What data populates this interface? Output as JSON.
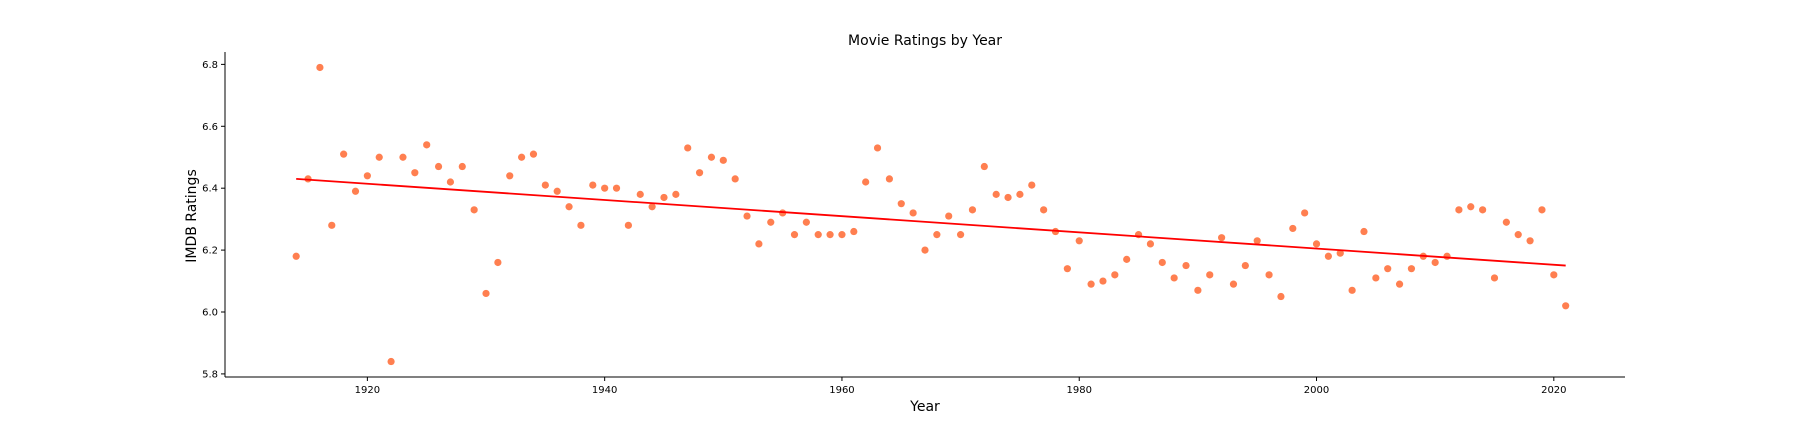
{
  "chart_data": {
    "type": "scatter",
    "title": "Movie Ratings by Year",
    "xlabel": "Year",
    "ylabel": "IMDB Ratings",
    "xlim": [
      1908,
      2026
    ],
    "ylim": [
      5.79,
      6.84
    ],
    "xticks": [
      1920,
      1940,
      1960,
      1980,
      2000,
      2020
    ],
    "yticks": [
      5.8,
      6.0,
      6.2,
      6.4,
      6.6,
      6.8
    ],
    "ytick_labels": [
      "5.8",
      "6.0",
      "6.2",
      "6.4",
      "6.6",
      "6.8"
    ],
    "grid": false,
    "point_color": "#ff7f50",
    "trend_color": "#ff0000",
    "trend_line": {
      "x": [
        1914,
        2021
      ],
      "y": [
        6.43,
        6.15
      ]
    },
    "points": {
      "x": [
        1914,
        1915,
        1916,
        1917,
        1918,
        1919,
        1920,
        1921,
        1922,
        1923,
        1924,
        1925,
        1926,
        1927,
        1928,
        1929,
        1930,
        1931,
        1932,
        1933,
        1934,
        1935,
        1936,
        1937,
        1938,
        1939,
        1940,
        1941,
        1942,
        1943,
        1944,
        1945,
        1946,
        1947,
        1948,
        1949,
        1950,
        1951,
        1952,
        1953,
        1954,
        1955,
        1956,
        1957,
        1958,
        1959,
        1960,
        1961,
        1962,
        1963,
        1964,
        1965,
        1966,
        1967,
        1968,
        1969,
        1970,
        1971,
        1972,
        1973,
        1974,
        1975,
        1976,
        1977,
        1978,
        1979,
        1980,
        1981,
        1982,
        1983,
        1984,
        1985,
        1986,
        1987,
        1988,
        1989,
        1990,
        1991,
        1992,
        1993,
        1994,
        1995,
        1996,
        1997,
        1998,
        1999,
        2000,
        2001,
        2002,
        2003,
        2004,
        2005,
        2006,
        2007,
        2008,
        2009,
        2010,
        2011,
        2012,
        2013,
        2014,
        2015,
        2016,
        2017,
        2018,
        2019,
        2020,
        2021
      ],
      "y": [
        6.18,
        6.43,
        6.79,
        6.28,
        6.51,
        6.39,
        6.44,
        6.5,
        5.84,
        6.5,
        6.45,
        6.54,
        6.47,
        6.42,
        6.47,
        6.33,
        6.06,
        6.16,
        6.44,
        6.5,
        6.51,
        6.41,
        6.39,
        6.34,
        6.28,
        6.41,
        6.4,
        6.4,
        6.28,
        6.38,
        6.34,
        6.37,
        6.38,
        6.53,
        6.45,
        6.5,
        6.49,
        6.43,
        6.31,
        6.22,
        6.29,
        6.32,
        6.25,
        6.29,
        6.25,
        6.25,
        6.25,
        6.26,
        6.42,
        6.53,
        6.43,
        6.35,
        6.32,
        6.2,
        6.25,
        6.31,
        6.25,
        6.33,
        6.47,
        6.38,
        6.37,
        6.38,
        6.41,
        6.33,
        6.26,
        6.14,
        6.23,
        6.09,
        6.1,
        6.12,
        6.17,
        6.25,
        6.22,
        6.16,
        6.11,
        6.15,
        6.07,
        6.12,
        6.24,
        6.09,
        6.15,
        6.23,
        6.12,
        6.05,
        6.27,
        6.32,
        6.22,
        6.18,
        6.19,
        6.07,
        6.26,
        6.11,
        6.14,
        6.09,
        6.14,
        6.18,
        6.16,
        6.18,
        6.33,
        6.34,
        6.33,
        6.11,
        6.29,
        6.25,
        6.23,
        6.33,
        6.12,
        6.02
      ]
    }
  }
}
